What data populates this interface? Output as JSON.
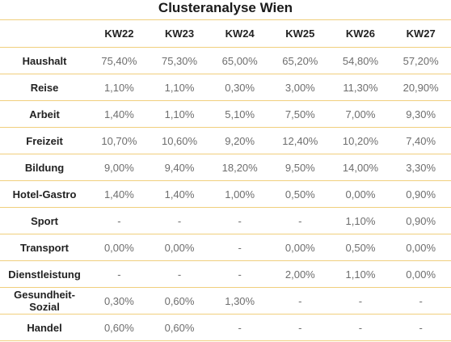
{
  "title": "Clusteranalyse Wien",
  "columns": [
    "",
    "KW22",
    "KW23",
    "KW24",
    "KW25",
    "KW26",
    "KW27"
  ],
  "rows": [
    {
      "label": "Haushalt",
      "values": [
        "75,40%",
        "75,30%",
        "65,00%",
        "65,20%",
        "54,80%",
        "57,20%"
      ]
    },
    {
      "label": "Reise",
      "values": [
        "1,10%",
        "1,10%",
        "0,30%",
        "3,00%",
        "11,30%",
        "20,90%"
      ]
    },
    {
      "label": "Arbeit",
      "values": [
        "1,40%",
        "1,10%",
        "5,10%",
        "7,50%",
        "7,00%",
        "9,30%"
      ]
    },
    {
      "label": "Freizeit",
      "values": [
        "10,70%",
        "10,60%",
        "9,20%",
        "12,40%",
        "10,20%",
        "7,40%"
      ]
    },
    {
      "label": "Bildung",
      "values": [
        "9,00%",
        "9,40%",
        "18,20%",
        "9,50%",
        "14,00%",
        "3,30%"
      ]
    },
    {
      "label": "Hotel-Gastro",
      "values": [
        "1,40%",
        "1,40%",
        "1,00%",
        "0,50%",
        "0,00%",
        "0,90%"
      ]
    },
    {
      "label": "Sport",
      "values": [
        "-",
        "-",
        "-",
        "-",
        "1,10%",
        "0,90%"
      ]
    },
    {
      "label": "Transport",
      "values": [
        "0,00%",
        "0,00%",
        "-",
        "0,00%",
        "0,50%",
        "0,00%"
      ]
    },
    {
      "label": "Dienstleistung",
      "values": [
        "-",
        "-",
        "-",
        "2,00%",
        "1,10%",
        "0,00%"
      ]
    },
    {
      "label": "Gesundheit-\nSozial",
      "values": [
        "0,30%",
        "0,60%",
        "1,30%",
        "-",
        "-",
        "-"
      ]
    },
    {
      "label": "Handel",
      "values": [
        "0,60%",
        "0,60%",
        "-",
        "-",
        "-",
        "-"
      ]
    }
  ]
}
